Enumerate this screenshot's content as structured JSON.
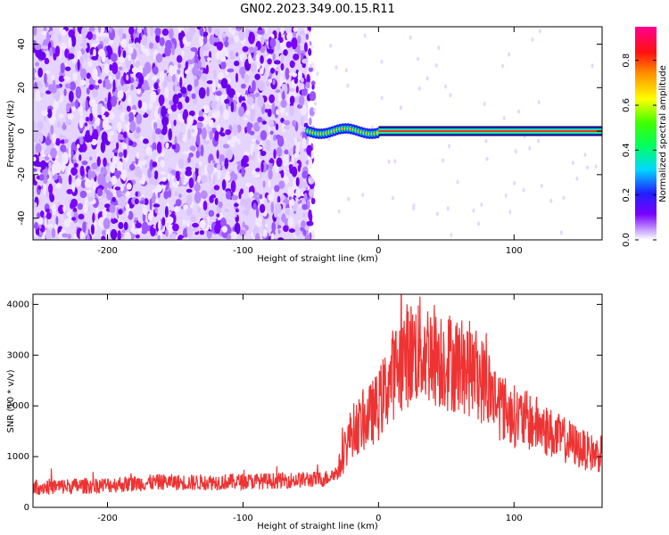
{
  "title": "GN02.2023.349.00.15.R11",
  "chart_data": [
    {
      "type": "heatmap",
      "xlabel": "Height of straight line (km)",
      "ylabel": "Frequency (Hz)",
      "xlim": [
        -255,
        165
      ],
      "ylim": [
        -50,
        48
      ],
      "x_ticks": [
        -200,
        -100,
        0,
        100
      ],
      "y_ticks": [
        -40,
        -20,
        0,
        20,
        40
      ],
      "colorbar": {
        "label": "Normalized spectral amplitude",
        "range": [
          0,
          0.95
        ],
        "ticks": [
          "0.0",
          "0.2",
          "0.4",
          "0.6",
          "0.8"
        ],
        "colors": [
          "#ffffff",
          "#c8a0ff",
          "#7a00ff",
          "#2020ff",
          "#00d8ff",
          "#00ff40",
          "#ffff00",
          "#ff8000",
          "#ff0000",
          "#ff00a0"
        ]
      },
      "regions": [
        {
          "name": "broadband noise",
          "x_range": [
            -255,
            -52
          ],
          "amplitude": 0.1
        },
        {
          "name": "signal trace",
          "x_range": [
            -52,
            165
          ],
          "center_freq_hz": 0,
          "amplitude": 0.95
        }
      ]
    },
    {
      "type": "line",
      "xlabel": "Height of straight line (km)",
      "ylabel": "SNR (10 * v/v)",
      "xlim": [
        -255,
        165
      ],
      "ylim": [
        0,
        4200
      ],
      "x_ticks": [
        -200,
        -100,
        0,
        100
      ],
      "y_ticks": [
        0,
        1000,
        2000,
        3000,
        4000
      ],
      "series": [
        {
          "color": "#ee3333",
          "envelope_x": [
            -255,
            -220,
            -200,
            -180,
            -160,
            -140,
            -120,
            -100,
            -80,
            -60,
            -40,
            -30,
            -25,
            -20,
            -10,
            0,
            10,
            20,
            30,
            40,
            50,
            60,
            70,
            80,
            90,
            100,
            110,
            120,
            130,
            140,
            150,
            160,
            165
          ],
          "envelope_mean": [
            400,
            420,
            440,
            470,
            500,
            490,
            500,
            510,
            520,
            540,
            560,
            700,
            1100,
            1500,
            1700,
            2000,
            2600,
            3000,
            3100,
            3050,
            2900,
            2800,
            2700,
            2400,
            2000,
            1800,
            1700,
            1600,
            1400,
            1300,
            1150,
            1050,
            1050
          ]
        }
      ]
    }
  ]
}
